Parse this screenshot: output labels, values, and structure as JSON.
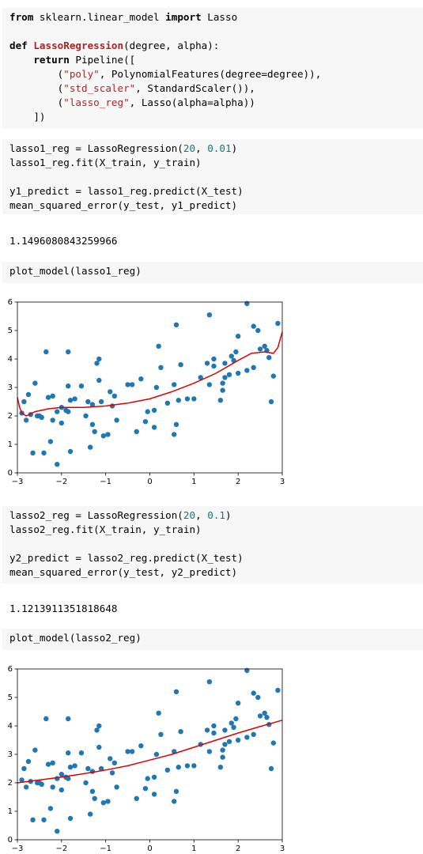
{
  "cells": [
    {
      "type": "code",
      "lines": [
        [
          {
            "text": "from",
            "bold": true
          },
          " sklearn.linear_model ",
          {
            "text": "import",
            "bold": true
          },
          " Lasso"
        ],
        [],
        [
          {
            "text": "def",
            "bold": true
          },
          " ",
          {
            "text": "LassoRegression",
            "color": "#b22222",
            "bold": true
          },
          "(degree, alpha):"
        ],
        [
          "    ",
          {
            "text": "return",
            "bold": true
          },
          " Pipeline(["
        ],
        [
          "        (",
          {
            "text": "\"poly\"",
            "color": "#ba2121"
          },
          ", PolynomialFeatures(degree=degree)),"
        ],
        [
          "        (",
          {
            "text": "\"std_scaler\"",
            "color": "#ba2121"
          },
          ", StandardScaler()),"
        ],
        [
          "        (",
          {
            "text": "\"lasso_reg\"",
            "color": "#ba2121"
          },
          ", Lasso(alpha=alpha))"
        ],
        [
          "    ])"
        ]
      ]
    },
    {
      "type": "code",
      "lines": [
        [
          "lasso1_reg = LassoRegression(",
          {
            "text": "20",
            "color": "#008080"
          },
          ", ",
          {
            "text": "0.01",
            "color": "#008080"
          },
          ")"
        ],
        [
          "lasso1_reg.fit(X_train, y_train)"
        ],
        [],
        [
          "y1_predict = lasso1_reg.predict(X_test)"
        ],
        [
          "mean_squared_error(y_test, y1_predict)"
        ]
      ]
    },
    {
      "type": "output",
      "text": "1.1496080843259966"
    },
    {
      "type": "code",
      "lines": [
        [
          "plot_model(lasso1_reg)"
        ]
      ]
    },
    {
      "type": "code",
      "lines": [
        [
          "lasso2_reg = LassoRegression(",
          {
            "text": "20",
            "color": "#008080"
          },
          ", ",
          {
            "text": "0.1",
            "color": "#008080"
          },
          ")"
        ],
        [
          "lasso2_reg.fit(X_train, y_train)"
        ],
        [],
        [
          "y2_predict = lasso2_reg.predict(X_test)"
        ],
        [
          "mean_squared_error(y_test, y2_predict)"
        ]
      ]
    },
    {
      "type": "output",
      "text": "1.1213911351818648"
    },
    {
      "type": "code",
      "lines": [
        [
          "plot_model(lasso2_reg)"
        ]
      ]
    }
  ],
  "chart_data": [
    {
      "type": "scatter",
      "xlim": [
        -3,
        3
      ],
      "ylim": [
        0,
        6
      ],
      "xticks": [
        {
          "value": -3,
          "label": "−3"
        },
        {
          "value": -2,
          "label": "−2"
        },
        {
          "value": -1,
          "label": "−1"
        },
        0,
        1,
        2,
        3
      ],
      "yticks": [
        0,
        1,
        2,
        3,
        4,
        5,
        6
      ],
      "series": [
        {
          "type": "scatter",
          "color": "#1f77b4",
          "x": [
            -2.9,
            -2.85,
            -2.8,
            -2.75,
            -2.7,
            -2.65,
            -2.6,
            -2.55,
            -2.5,
            -2.45,
            -2.4,
            -2.35,
            -2.3,
            -2.25,
            -2.2,
            -2.2,
            -2.1,
            -2.1,
            -2.0,
            -2.0,
            -1.9,
            -1.85,
            -1.85,
            -1.85,
            -1.8,
            -1.8,
            -1.7,
            -1.55,
            -1.45,
            -1.4,
            -1.35,
            -1.3,
            -1.3,
            -1.25,
            -1.2,
            -1.15,
            -1.15,
            -1.1,
            -1.05,
            -0.95,
            -0.9,
            -0.85,
            -0.8,
            -0.75,
            -0.5,
            -0.4,
            -0.3,
            -0.2,
            -0.1,
            -0.05,
            0.1,
            0.1,
            0.15,
            0.2,
            0.25,
            0.4,
            0.55,
            0.55,
            0.6,
            0.6,
            0.65,
            0.7,
            0.85,
            1.0,
            1.15,
            1.3,
            1.35,
            1.35,
            1.45,
            1.45,
            1.6,
            1.65,
            1.65,
            1.7,
            1.7,
            1.8,
            1.85,
            1.9,
            1.95,
            2.0,
            2.0,
            2.2,
            2.2,
            2.35,
            2.35,
            2.45,
            2.5,
            2.6,
            2.65,
            2.7,
            2.75,
            2.8,
            2.9
          ],
          "values": [
            2.1,
            2.5,
            1.85,
            2.75,
            2.05,
            0.7,
            3.15,
            2.0,
            2.0,
            1.95,
            0.7,
            4.25,
            2.65,
            1.1,
            2.7,
            1.85,
            0.3,
            2.15,
            2.3,
            1.75,
            2.2,
            4.25,
            3.05,
            2.15,
            2.55,
            0.75,
            2.6,
            3.05,
            2.0,
            2.5,
            0.9,
            2.4,
            1.7,
            1.45,
            3.85,
            4.0,
            3.25,
            2.5,
            1.3,
            1.35,
            2.85,
            2.35,
            2.7,
            1.85,
            3.1,
            3.1,
            1.45,
            3.3,
            1.8,
            2.15,
            2.2,
            1.6,
            3.0,
            4.45,
            3.7,
            2.45,
            3.1,
            1.35,
            1.7,
            5.2,
            2.55,
            3.8,
            2.6,
            2.6,
            3.35,
            3.85,
            5.55,
            3.1,
            4.0,
            3.75,
            2.55,
            2.9,
            3.15,
            3.35,
            3.85,
            3.45,
            4.1,
            3.95,
            4.25,
            4.8,
            3.5,
            5.95,
            3.6,
            5.15,
            3.7,
            5.0,
            4.35,
            4.45,
            4.3,
            4.05,
            2.5,
            3.4,
            5.25
          ]
        },
        {
          "type": "line",
          "color": "#e00000",
          "x": [
            -3,
            -2.95,
            -2.9,
            -2.8,
            -2.6,
            -2.3,
            -2.0,
            -1.5,
            -1.0,
            -0.5,
            0,
            0.5,
            1.0,
            1.5,
            2.0,
            2.3,
            2.6,
            2.8,
            2.9,
            3
          ],
          "values": [
            2.65,
            2.3,
            2.1,
            2.0,
            2.15,
            2.25,
            2.3,
            2.3,
            2.35,
            2.45,
            2.6,
            2.85,
            3.15,
            3.5,
            3.95,
            4.2,
            4.25,
            4.2,
            4.4,
            4.95
          ]
        }
      ]
    },
    {
      "type": "scatter",
      "xlim": [
        -3,
        3
      ],
      "ylim": [
        0,
        6
      ],
      "xticks": [
        {
          "value": -3,
          "label": "−3"
        },
        {
          "value": -2,
          "label": "−2"
        },
        {
          "value": -1,
          "label": "−1"
        },
        0,
        1,
        2,
        3
      ],
      "yticks": [
        0,
        1,
        2,
        3,
        4,
        5,
        6
      ],
      "series": [
        {
          "type": "scatter",
          "color": "#1f77b4",
          "x": [
            -2.9,
            -2.85,
            -2.8,
            -2.75,
            -2.7,
            -2.65,
            -2.6,
            -2.55,
            -2.5,
            -2.45,
            -2.4,
            -2.35,
            -2.3,
            -2.25,
            -2.2,
            -2.2,
            -2.1,
            -2.1,
            -2.0,
            -2.0,
            -1.9,
            -1.85,
            -1.85,
            -1.85,
            -1.8,
            -1.8,
            -1.7,
            -1.55,
            -1.45,
            -1.4,
            -1.35,
            -1.3,
            -1.3,
            -1.25,
            -1.2,
            -1.15,
            -1.15,
            -1.1,
            -1.05,
            -0.95,
            -0.9,
            -0.85,
            -0.8,
            -0.75,
            -0.5,
            -0.4,
            -0.3,
            -0.2,
            -0.1,
            -0.05,
            0.1,
            0.1,
            0.15,
            0.2,
            0.25,
            0.4,
            0.55,
            0.55,
            0.6,
            0.6,
            0.65,
            0.7,
            0.85,
            1.0,
            1.15,
            1.3,
            1.35,
            1.35,
            1.45,
            1.45,
            1.6,
            1.65,
            1.65,
            1.7,
            1.7,
            1.8,
            1.85,
            1.9,
            1.95,
            2.0,
            2.0,
            2.2,
            2.2,
            2.35,
            2.35,
            2.45,
            2.5,
            2.6,
            2.65,
            2.7,
            2.75,
            2.8,
            2.9
          ],
          "values": [
            2.1,
            2.5,
            1.85,
            2.75,
            2.05,
            0.7,
            3.15,
            2.0,
            2.0,
            1.95,
            0.7,
            4.25,
            2.65,
            1.1,
            2.7,
            1.85,
            0.3,
            2.15,
            2.3,
            1.75,
            2.2,
            4.25,
            3.05,
            2.15,
            2.55,
            0.75,
            2.6,
            3.05,
            2.0,
            2.5,
            0.9,
            2.4,
            1.7,
            1.45,
            3.85,
            4.0,
            3.25,
            2.5,
            1.3,
            1.35,
            2.85,
            2.35,
            2.7,
            1.85,
            3.1,
            3.1,
            1.45,
            3.3,
            1.8,
            2.15,
            2.2,
            1.6,
            3.0,
            4.45,
            3.7,
            2.45,
            3.1,
            1.35,
            1.7,
            5.2,
            2.55,
            3.8,
            2.6,
            2.6,
            3.35,
            3.85,
            5.55,
            3.1,
            4.0,
            3.75,
            2.55,
            2.9,
            3.15,
            3.35,
            3.85,
            3.45,
            4.1,
            3.95,
            4.25,
            4.8,
            3.5,
            5.95,
            3.6,
            5.15,
            3.7,
            5.0,
            4.35,
            4.45,
            4.3,
            4.05,
            2.5,
            3.4,
            5.25
          ]
        },
        {
          "type": "line",
          "color": "#e00000",
          "x": [
            -3,
            -2.5,
            -2,
            -1.5,
            -1,
            -0.5,
            0,
            0.5,
            1,
            1.5,
            2,
            2.5,
            3
          ],
          "values": [
            2.0,
            2.1,
            2.2,
            2.32,
            2.45,
            2.6,
            2.8,
            3.0,
            3.25,
            3.5,
            3.75,
            3.98,
            4.2
          ]
        }
      ]
    }
  ]
}
